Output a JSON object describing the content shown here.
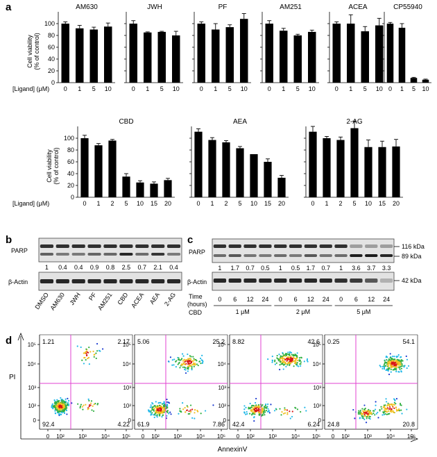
{
  "panel_labels": {
    "a": "a",
    "b": "b",
    "c": "c",
    "d": "d"
  },
  "colors": {
    "bar": "#000000",
    "gate": "#e040d0",
    "blot_bg": "#e3e3e3",
    "band": "#1c1c1c"
  },
  "panel_a": {
    "ylabel_line1": "Cell viability",
    "ylabel_line2": "(% of control)",
    "xlabel": "[Ligand] (μM)",
    "y_ticks": [
      "0",
      "20",
      "40",
      "60",
      "80",
      "100"
    ]
  },
  "chart_data": [
    {
      "type": "bar",
      "title": "AM630",
      "categories": [
        "0",
        "1",
        "5",
        "10"
      ],
      "values": [
        100,
        92,
        90,
        95
      ],
      "errors": [
        3,
        5,
        4,
        6
      ],
      "ylim": [
        0,
        120
      ],
      "ylabel": "Cell viability (% of control)",
      "xlabel": "[Ligand] (μM)"
    },
    {
      "type": "bar",
      "title": "JWH",
      "categories": [
        "0",
        "1",
        "5",
        "10"
      ],
      "values": [
        100,
        85,
        86,
        80
      ],
      "errors": [
        5,
        1,
        1,
        7
      ],
      "ylim": [
        0,
        120
      ]
    },
    {
      "type": "bar",
      "title": "PF",
      "categories": [
        "0",
        "1",
        "5",
        "10"
      ],
      "values": [
        100,
        90,
        94,
        108
      ],
      "errors": [
        3,
        10,
        4,
        9
      ],
      "ylim": [
        0,
        120
      ]
    },
    {
      "type": "bar",
      "title": "AM251",
      "categories": [
        "0",
        "1",
        "5",
        "10"
      ],
      "values": [
        100,
        88,
        80,
        86
      ],
      "errors": [
        5,
        4,
        2,
        3
      ],
      "ylim": [
        0,
        120
      ]
    },
    {
      "type": "bar",
      "title": "ACEA",
      "categories": [
        "0",
        "1",
        "5",
        "10"
      ],
      "values": [
        100,
        100,
        87,
        97
      ],
      "errors": [
        3,
        15,
        8,
        12
      ],
      "ylim": [
        0,
        120
      ]
    },
    {
      "type": "bar",
      "title": "CP55940",
      "categories": [
        "0",
        "1",
        "5",
        "10"
      ],
      "values": [
        100,
        93,
        8,
        5
      ],
      "errors": [
        2,
        7,
        1,
        1
      ],
      "ylim": [
        0,
        120
      ]
    },
    {
      "type": "bar",
      "title": "CBD",
      "categories": [
        "0",
        "1",
        "2",
        "5",
        "10",
        "15",
        "20"
      ],
      "values": [
        100,
        88,
        96,
        35,
        25,
        23,
        29
      ],
      "errors": [
        5,
        3,
        2,
        5,
        3,
        3,
        3
      ],
      "ylim": [
        0,
        120
      ],
      "ylabel": "Cell viability (% of control)",
      "xlabel": "[Ligand] (μM)"
    },
    {
      "type": "bar",
      "title": "AEA",
      "categories": [
        "0",
        "1",
        "2",
        "5",
        "10",
        "15",
        "20"
      ],
      "values": [
        111,
        97,
        93,
        83,
        73,
        60,
        33
      ],
      "errors": [
        5,
        4,
        3,
        3,
        0,
        5,
        4
      ],
      "ylim": [
        0,
        120
      ]
    },
    {
      "type": "bar",
      "title": "2-AG",
      "categories": [
        "0",
        "1",
        "2",
        "5",
        "10",
        "15",
        "20"
      ],
      "values": [
        111,
        100,
        97,
        117,
        85,
        85,
        86
      ],
      "errors": [
        9,
        3,
        5,
        12,
        12,
        10,
        12
      ],
      "ylim": [
        0,
        120
      ]
    }
  ],
  "panel_b": {
    "parp_label": "PARP",
    "actin_label": "β-Actin",
    "values": [
      "1",
      "0.4",
      "0.4",
      "0.9",
      "0.8",
      "2.5",
      "0.7",
      "2.1",
      "0.4"
    ],
    "lanes": [
      "DMSO",
      "AM630",
      "JWH",
      "PF",
      "AM251",
      "CBD",
      "ACEA",
      "AEA",
      "2-AG"
    ]
  },
  "panel_c": {
    "parp_label": "PARP",
    "actin_label": "β-Actin",
    "kda_116": "116 kDa",
    "kda_89": "89 kDa",
    "kda_42": "42 kDa",
    "values": [
      "1",
      "1.7",
      "0.7",
      "0.5",
      "1",
      "0.5",
      "1.7",
      "0.7",
      "1",
      "3.6",
      "3.7",
      "3.3"
    ],
    "time_label_line1": "Time",
    "time_label_line2": "(hours)",
    "cbd_label": "CBD",
    "times": [
      "0",
      "6",
      "12",
      "24",
      "0",
      "6",
      "12",
      "24",
      "0",
      "6",
      "12",
      "24"
    ],
    "groups": [
      "1 μM",
      "2 μM",
      "5 μM"
    ]
  },
  "panel_d": {
    "ylabel": "PI",
    "xlabel": "AnnexinV",
    "y_ticks": [
      "10⁵",
      "10⁴",
      "10³",
      "10²",
      "0"
    ],
    "x_ticks": [
      "0",
      "10²",
      "10³",
      "10⁴",
      "10⁵"
    ],
    "plots": [
      {
        "ul": "1.21",
        "ur": "2.17",
        "ll": "92.4",
        "lr": "4.22"
      },
      {
        "ul": "5.06",
        "ur": "25.2",
        "ll": "61.9",
        "lr": "7.86"
      },
      {
        "ul": "8.82",
        "ur": "42.6",
        "ll": "42.4",
        "lr": "6.24"
      },
      {
        "ul": "0.25",
        "ur": "54.1",
        "ll": "24.8",
        "lr": "20.8"
      }
    ]
  }
}
